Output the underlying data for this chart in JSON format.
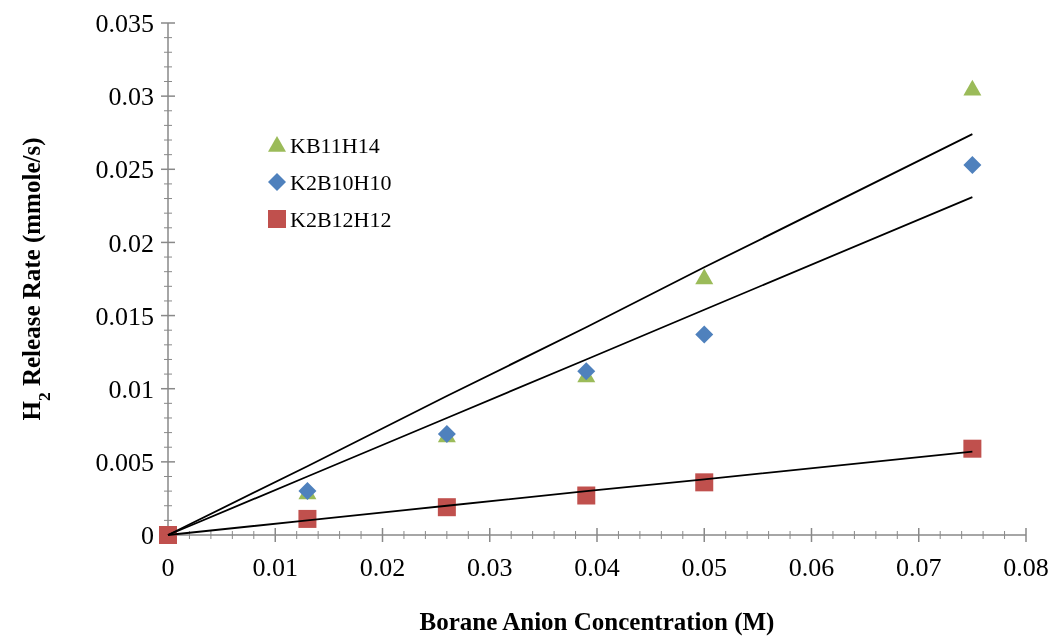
{
  "chart_data": {
    "type": "scatter",
    "xlabel": "Borane Anion Concentration (M)",
    "ylabel": "H$_{2}$ Release Rate (mmole/s)",
    "x": [
      0,
      0.013,
      0.026,
      0.039,
      0.05,
      0.075
    ],
    "xlim": [
      0,
      0.08
    ],
    "xticks": [
      0,
      0.01,
      0.02,
      0.03,
      0.04,
      0.05,
      0.06,
      0.07,
      0.08
    ],
    "ylim": [
      0,
      0.035
    ],
    "yticks": [
      0,
      0.005,
      0.01,
      0.015,
      0.02,
      0.025,
      0.03,
      0.035
    ],
    "grid": false,
    "legend": "top left",
    "series": [
      {
        "name": "KB11H14",
        "color": "#9bbb59",
        "marker": "triangle",
        "values": [
          null,
          0.0029,
          0.0068,
          0.0109,
          0.0176,
          0.0305
        ]
      },
      {
        "name": "K2B10H10",
        "color": "#4f81bd",
        "marker": "diamond",
        "values": [
          null,
          0.003,
          0.0069,
          0.0112,
          0.0137,
          0.0253
        ]
      },
      {
        "name": "K2B12H12",
        "color": "#c0504d",
        "marker": "square",
        "values": [
          0,
          0.0011,
          0.0019,
          0.0027,
          0.0036,
          0.0059
        ]
      },
      {
        "type": "line",
        "color": "#000000",
        "marker": "none",
        "values": [
          0,
          0.0047,
          0.0095,
          0.0142,
          0.0183,
          0.0274
        ]
      },
      {
        "type": "line",
        "color": "#000000",
        "marker": "none",
        "values": [
          0,
          0.004,
          0.008,
          0.012,
          0.0154,
          0.0231
        ]
      },
      {
        "type": "line",
        "color": "#000000",
        "marker": "none",
        "values": [
          0,
          0.001,
          0.002,
          0.003,
          0.0038,
          0.0057
        ]
      }
    ]
  }
}
